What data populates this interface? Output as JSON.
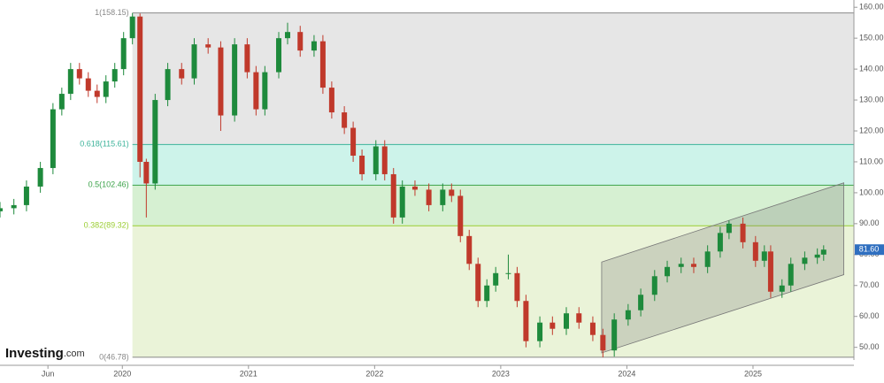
{
  "chart_data": {
    "type": "candlestick",
    "xlim": [
      2019.03,
      2025.8
    ],
    "xticks": [
      {
        "value": 2019.41,
        "label": "Jun"
      },
      {
        "value": 2020,
        "label": "2020"
      },
      {
        "value": 2021,
        "label": "2021"
      },
      {
        "value": 2022,
        "label": "2022"
      },
      {
        "value": 2023,
        "label": "2023"
      },
      {
        "value": 2024,
        "label": "2024"
      },
      {
        "value": 2025,
        "label": "2025"
      }
    ],
    "ylim": [
      45.9,
      162.35
    ],
    "yticks": [
      {
        "value": 50,
        "label": "50.00"
      },
      {
        "value": 60,
        "label": "60.00"
      },
      {
        "value": 70,
        "label": "70.00"
      },
      {
        "value": 80,
        "label": "80.00"
      },
      {
        "value": 90,
        "label": "90.00"
      },
      {
        "value": 100,
        "label": "100.00"
      },
      {
        "value": 110,
        "label": "110.00"
      },
      {
        "value": 120,
        "label": "120.00"
      },
      {
        "value": 130,
        "label": "130.00"
      },
      {
        "value": 140,
        "label": "140.00"
      },
      {
        "value": 150,
        "label": "150.00"
      },
      {
        "value": 160,
        "label": "160.00"
      }
    ],
    "up_color": "#1e8a3c",
    "down_color": "#c0392b",
    "series": {
      "x": [
        2019.03,
        2019.14,
        2019.24,
        2019.35,
        2019.45,
        2019.52,
        2019.59,
        2019.66,
        2019.73,
        2019.8,
        2019.87,
        2019.94,
        2020.01,
        2020.08,
        2020.14,
        2020.19,
        2020.26,
        2020.36,
        2020.47,
        2020.57,
        2020.68,
        2020.78,
        2020.89,
        2020.99,
        2021.06,
        2021.13,
        2021.24,
        2021.31,
        2021.41,
        2021.52,
        2021.59,
        2021.66,
        2021.76,
        2021.83,
        2021.9,
        2022.01,
        2022.08,
        2022.15,
        2022.22,
        2022.32,
        2022.43,
        2022.54,
        2022.61,
        2022.68,
        2022.75,
        2022.82,
        2022.89,
        2022.96,
        2023.06,
        2023.13,
        2023.2,
        2023.31,
        2023.41,
        2023.52,
        2023.62,
        2023.73,
        2023.81,
        2023.9,
        2024.01,
        2024.11,
        2024.22,
        2024.32,
        2024.43,
        2024.53,
        2024.64,
        2024.74,
        2024.81,
        2024.92,
        2025.02,
        2025.09,
        2025.14,
        2025.23,
        2025.3,
        2025.41,
        2025.51,
        2025.56
      ],
      "open": [
        94,
        95,
        96,
        102,
        108,
        127,
        132,
        140,
        137,
        133,
        131,
        136,
        140,
        150,
        157,
        110,
        103,
        130,
        140,
        137,
        148,
        147,
        125,
        148,
        139,
        127,
        139,
        150,
        152,
        146,
        149,
        134,
        126,
        121,
        112,
        106,
        115,
        106,
        92,
        102,
        101,
        96,
        101,
        99,
        86,
        77,
        65,
        70,
        74,
        74,
        65,
        52,
        58,
        56,
        61,
        58,
        54,
        49,
        59,
        62,
        67,
        73,
        76,
        77,
        76,
        81,
        87,
        90,
        84,
        78,
        81,
        68,
        70,
        77,
        79,
        80
      ],
      "high": [
        97,
        98,
        104,
        110,
        129,
        134,
        142,
        142,
        139,
        135,
        138,
        142,
        152,
        158.15,
        158,
        111,
        132,
        142,
        142,
        150,
        150,
        149,
        150,
        150,
        141,
        141,
        152,
        155,
        154,
        151,
        151,
        136,
        128,
        123,
        114,
        117,
        117,
        108,
        104,
        104,
        103,
        103,
        103,
        101,
        88,
        79,
        72,
        76,
        80,
        76,
        67,
        60,
        60,
        63,
        63,
        60,
        56,
        61,
        64,
        69,
        75,
        78,
        79,
        79,
        83,
        89,
        91,
        92,
        86,
        83,
        83,
        72,
        79,
        81,
        82,
        83
      ],
      "low": [
        92,
        93,
        94,
        100,
        106,
        125,
        130,
        135,
        131,
        129,
        129,
        134,
        138,
        148,
        105,
        92,
        101,
        128,
        135,
        135,
        145,
        120,
        123,
        137,
        125,
        125,
        137,
        148,
        144,
        144,
        132,
        124,
        119,
        110,
        104,
        104,
        104,
        90,
        90,
        99,
        94,
        94,
        97,
        84,
        75,
        63,
        63,
        68,
        72,
        63,
        50,
        50,
        54,
        54,
        56,
        52,
        46.78,
        47,
        57,
        60,
        65,
        71,
        74,
        74,
        74,
        79,
        85,
        82,
        76,
        76,
        66,
        66,
        68,
        75,
        77,
        78
      ],
      "close": [
        95,
        96,
        102,
        108,
        127,
        132,
        140,
        137,
        133,
        131,
        136,
        140,
        150,
        157,
        110,
        103,
        130,
        140,
        137,
        148,
        147,
        125,
        148,
        139,
        127,
        139,
        150,
        152,
        146,
        149,
        134,
        126,
        121,
        112,
        106,
        115,
        106,
        92,
        102,
        101,
        96,
        101,
        99,
        86,
        77,
        65,
        70,
        74,
        74,
        65,
        52,
        58,
        56,
        61,
        58,
        54,
        49,
        59,
        62,
        67,
        73,
        76,
        77,
        76,
        81,
        87,
        90,
        84,
        78,
        81,
        68,
        70,
        77,
        79,
        80,
        81.6
      ]
    },
    "fibonacci": [
      {
        "label": "1(158.15)",
        "value": 158.15,
        "color": "#888888",
        "fill": "#e6e6e6"
      },
      {
        "label": "0.618(115.61)",
        "value": 115.61,
        "color": "#3cb39a",
        "fill": "#cdf3ea"
      },
      {
        "label": "0.5(102.46)",
        "value": 102.46,
        "color": "#3ca34a",
        "fill": "#d6f0d2"
      },
      {
        "label": "0.382(89.32)",
        "value": 89.32,
        "color": "#9acd32",
        "fill": "#eaf3d8"
      },
      {
        "label": "0(46.78)",
        "value": 46.78,
        "color": "#888888"
      }
    ],
    "channel": {
      "x": [
        2023.8,
        2025.72
      ],
      "upper": [
        77.6,
        103.2
      ],
      "lower": [
        48.2,
        73.5
      ]
    },
    "last_price": {
      "value": 81.6,
      "label": "81.60"
    },
    "logo": {
      "name": "Investing",
      "suffix": ".com"
    }
  }
}
